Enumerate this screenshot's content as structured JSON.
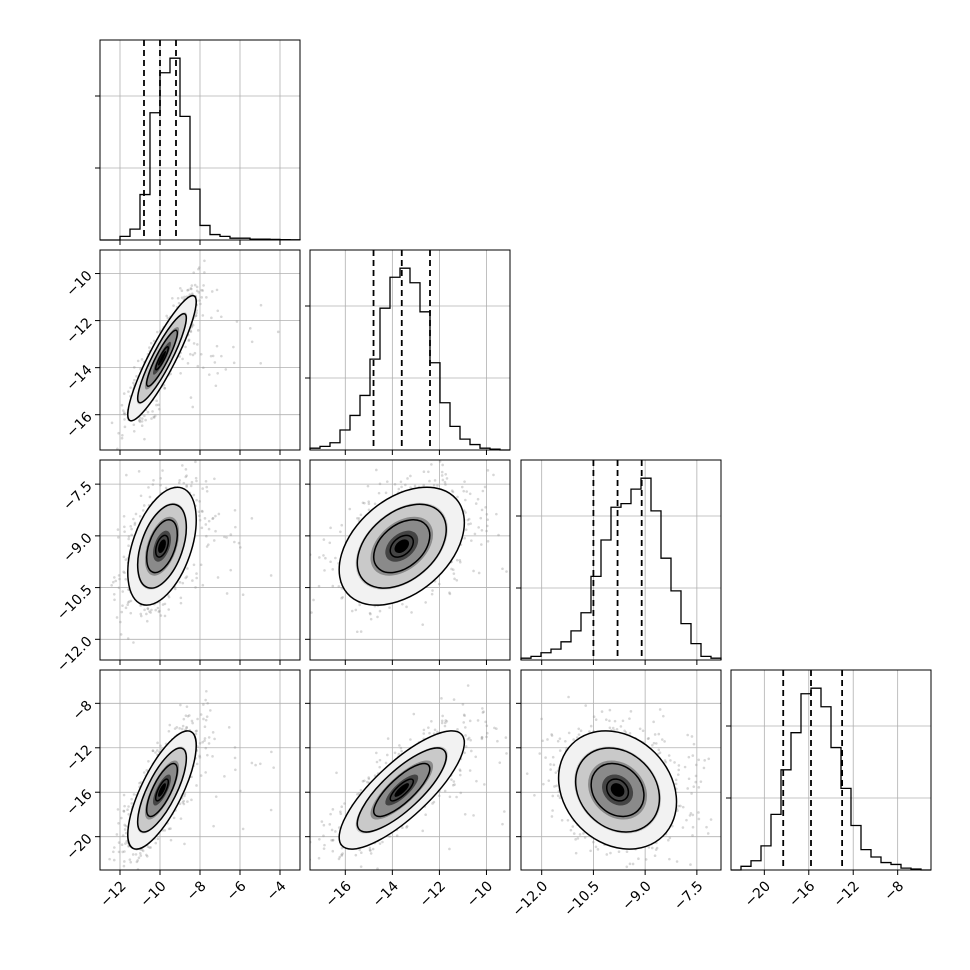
{
  "chart_data": {
    "type": "scatter",
    "subtype": "corner-plot",
    "title": "",
    "grid": true,
    "colors": {
      "contour": "#000000",
      "points": "#8c8c8c",
      "grid": "#b0b0b0",
      "axis": "#000000"
    },
    "parameters": [
      {
        "ticks": [
          -12,
          -10,
          -8,
          -6,
          -4
        ],
        "tick_labels": [
          "−12",
          "−10",
          "−8",
          "−6",
          "−4"
        ],
        "range": [
          -13.0,
          -3.0
        ],
        "quantiles": [
          -10.8,
          -10.0,
          -9.2
        ],
        "histogram": [
          0,
          0,
          2,
          6,
          25,
          70,
          92,
          100,
          68,
          28,
          8,
          3,
          2,
          1,
          1,
          0.5,
          0.5,
          0.3,
          0.2,
          0.1
        ]
      },
      {
        "ticks": [
          -16,
          -14,
          -12,
          -10
        ],
        "tick_labels": [
          "−16",
          "−14",
          "−12",
          "−10"
        ],
        "range": [
          -17.5,
          -9.0
        ],
        "quantiles": [
          -14.8,
          -13.6,
          -12.4
        ],
        "histogram": [
          1,
          2,
          4,
          11,
          19,
          30,
          50,
          78,
          95,
          100,
          92,
          76,
          48,
          26,
          13,
          6,
          3,
          1,
          0.5,
          0
        ]
      },
      {
        "ticks": [
          -12.0,
          -10.5,
          -9.0,
          -7.5
        ],
        "tick_labels": [
          "−12.0",
          "−10.5",
          "−9.0",
          "−7.5"
        ],
        "range": [
          -12.6,
          -6.8
        ],
        "quantiles": [
          -10.5,
          -9.8,
          -9.1
        ],
        "histogram": [
          1,
          2,
          4,
          6,
          10,
          16,
          26,
          46,
          66,
          84,
          86,
          94,
          100,
          82,
          56,
          38,
          20,
          9,
          2,
          1
        ]
      },
      {
        "ticks": [
          -20,
          -16,
          -12,
          -8
        ],
        "tick_labels": [
          "−20",
          "−16",
          "−12",
          "−8"
        ],
        "range": [
          -23.0,
          -5.0
        ],
        "quantiles": [
          -18.3,
          -15.8,
          -13.0
        ],
        "histogram": [
          0,
          2,
          5,
          13,
          30,
          54,
          74,
          95,
          98,
          88,
          66,
          44,
          24,
          11,
          7,
          4,
          3,
          1,
          0.5,
          0
        ]
      }
    ],
    "pairs": [
      {
        "x": 0,
        "y": 1,
        "center": [
          -9.9,
          -13.6
        ],
        "spread": [
          0.9,
          1.4
        ],
        "corr": 0.9
      },
      {
        "x": 0,
        "y": 2,
        "center": [
          -9.9,
          -9.3
        ],
        "spread": [
          0.9,
          0.9
        ],
        "corr": 0.45
      },
      {
        "x": 1,
        "y": 2,
        "center": [
          -13.6,
          -9.3
        ],
        "spread": [
          1.4,
          0.9
        ],
        "corr": 0.4
      },
      {
        "x": 0,
        "y": 3,
        "center": [
          -9.9,
          -15.8
        ],
        "spread": [
          0.9,
          2.8
        ],
        "corr": 0.75
      },
      {
        "x": 1,
        "y": 3,
        "center": [
          -13.6,
          -15.8
        ],
        "spread": [
          1.4,
          2.8
        ],
        "corr": 0.8
      },
      {
        "x": 2,
        "y": 3,
        "center": [
          -9.8,
          -15.8
        ],
        "spread": [
          0.9,
          2.8
        ],
        "corr": -0.2
      }
    ]
  }
}
